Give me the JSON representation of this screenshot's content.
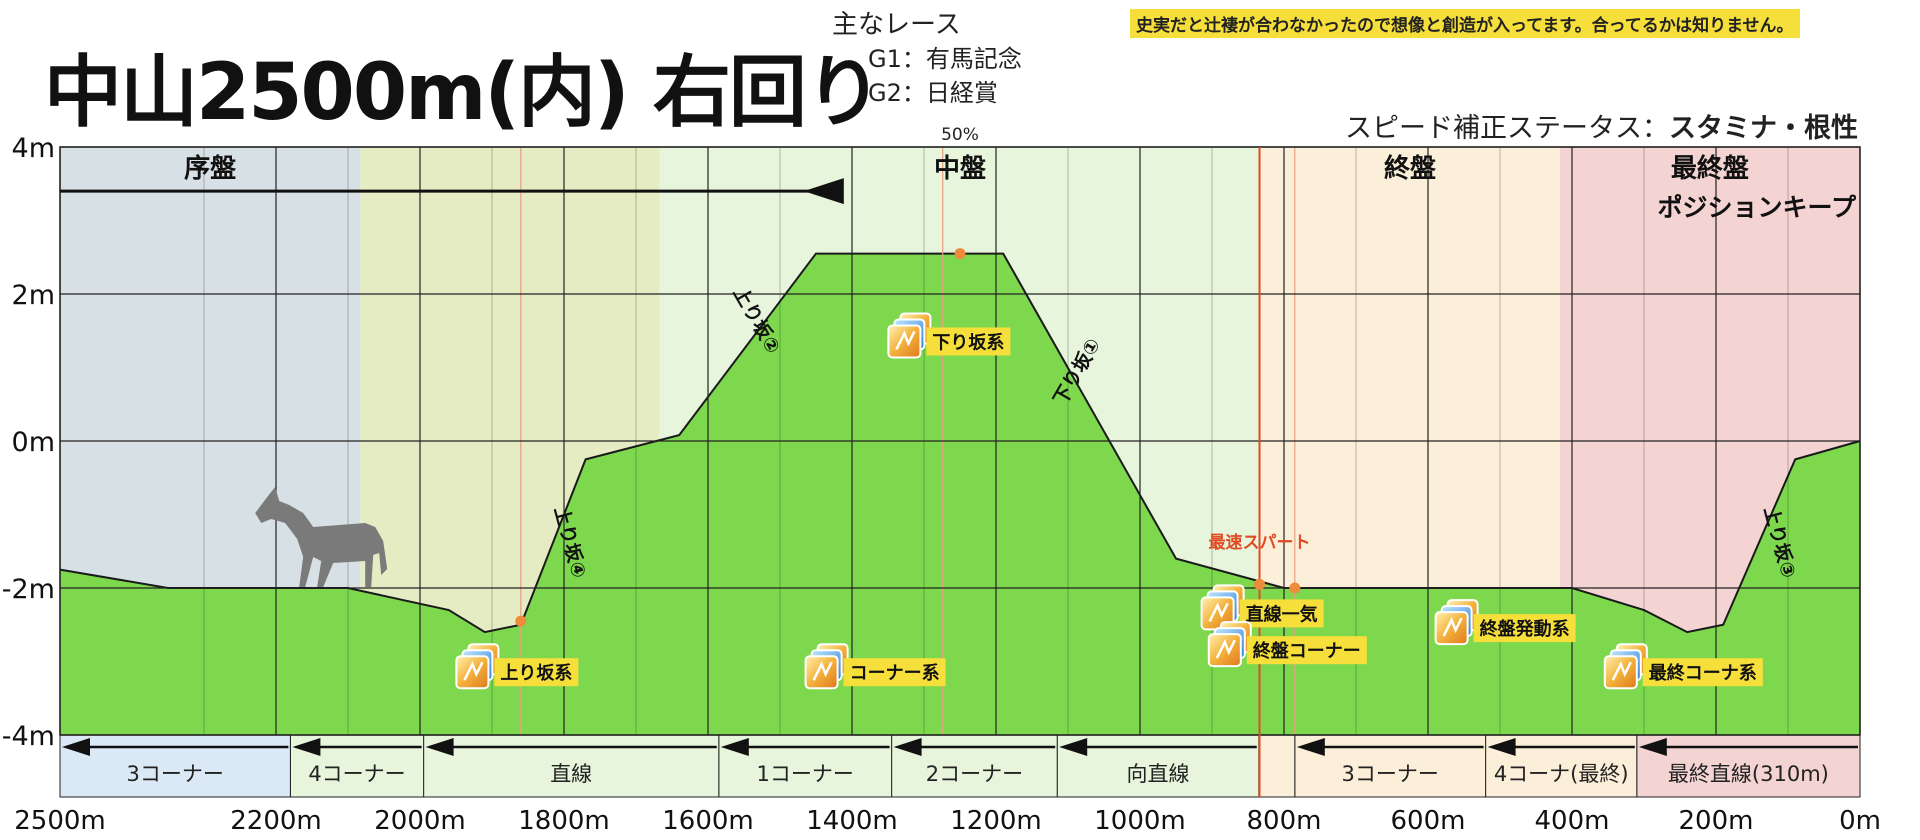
{
  "header": {
    "title": "中山2500m(内) 右回り",
    "main_races_label": "主なレース",
    "races": [
      "G1：有馬記念",
      "G2：日経賞"
    ],
    "note": "史実だと辻褄が合わなかったので想像と創造が入ってます。合ってるかは知りません。",
    "status_label": "スピード補正ステータス：",
    "status_value": "スタミナ・根性"
  },
  "chart_data": {
    "type": "area",
    "title": "中山2500m(内) 右回り",
    "x_unit": "m",
    "y_unit": "m",
    "xlim": [
      0,
      2500
    ],
    "ylim": [
      -4,
      4
    ],
    "x_ticks": [
      "0m",
      "200m",
      "400m",
      "600m",
      "800m",
      "1000m",
      "1200m",
      "1400m",
      "1600m",
      "1800m",
      "2000m",
      "2200m",
      "2500m"
    ],
    "y_ticks": [
      "4m",
      "2m",
      "0m",
      "-2m",
      "-4m"
    ],
    "grid": true,
    "elevation": {
      "x": [
        0,
        90,
        190,
        240,
        300,
        400,
        800,
        950,
        1190,
        1450,
        1640,
        1770,
        1860,
        1910,
        1960,
        2100,
        2350,
        2500
      ],
      "y": [
        0,
        -0.25,
        -2.5,
        -2.6,
        -2.3,
        -2.0,
        -2.0,
        -1.6,
        2.55,
        2.55,
        0.08,
        -0.25,
        -2.5,
        -2.6,
        -2.3,
        -2.0,
        -2.0,
        -1.75
      ]
    },
    "phases": [
      {
        "label": "最終盤",
        "from": 0,
        "to": 417,
        "color": "#f4d4d2"
      },
      {
        "label": "終盤",
        "from": 417,
        "to": 833,
        "color": "#fcefd9"
      },
      {
        "label": "中盤",
        "from": 833,
        "to": 1667,
        "color": "#e6f5dc"
      },
      {
        "label": "",
        "from": 1667,
        "to": 2083,
        "color": "#e5ecc4"
      },
      {
        "label": "序盤",
        "from": 2083,
        "to": 2500,
        "color": "#d7e0e5"
      }
    ],
    "sections": [
      {
        "label": "最終直線(310m)",
        "from": 0,
        "to": 310,
        "color": "#f4d4d2"
      },
      {
        "label": "4コーナ(最終)",
        "from": 310,
        "to": 520,
        "color": "#fcefd9"
      },
      {
        "label": "3コーナー",
        "from": 520,
        "to": 785,
        "color": "#fcefd9"
      },
      {
        "label": "",
        "from": 785,
        "to": 835,
        "color": "#fcefd9"
      },
      {
        "label": "向直線",
        "from": 835,
        "to": 1115,
        "color": "#e6f5dc"
      },
      {
        "label": "2コーナー",
        "from": 1115,
        "to": 1345,
        "color": "#e6f5dc"
      },
      {
        "label": "1コーナー",
        "from": 1345,
        "to": 1585,
        "color": "#e6f5dc"
      },
      {
        "label": "直線",
        "from": 1585,
        "to": 1995,
        "color": "#e6f5dc"
      },
      {
        "label": "4コーナー",
        "from": 1995,
        "to": 2180,
        "color": "#e6f5dc"
      },
      {
        "label": "3コーナー",
        "from": 2180,
        "to": 2500,
        "color": "#dbe9f6"
      }
    ],
    "slope_labels": [
      {
        "label": "上り坂③",
        "x": 120,
        "y": -1.4,
        "rotate": 75
      },
      {
        "label": "下り坂①",
        "x": 1080,
        "y": 0.9,
        "rotate": -60
      },
      {
        "label": "上り坂②",
        "x": 1540,
        "y": 1.6,
        "rotate": 60
      },
      {
        "label": "上り坂④",
        "x": 1800,
        "y": -1.4,
        "rotate": 75
      }
    ],
    "skills": [
      {
        "label": "最終コーナ系",
        "x": 285,
        "y": -3.2
      },
      {
        "label": "終盤発動系",
        "x": 520,
        "y": -2.6
      },
      {
        "label": "直線一気",
        "x": 845,
        "y": -2.4
      },
      {
        "label": "終盤コーナー",
        "x": 835,
        "y": -2.9
      },
      {
        "label": "下り坂系",
        "x": 1280,
        "y": 1.3
      },
      {
        "label": "コーナー系",
        "x": 1395,
        "y": -3.2
      },
      {
        "label": "上り坂系",
        "x": 1880,
        "y": -3.2
      }
    ],
    "markers": {
      "spurt_label": "最速スパート",
      "spurt_x": 834,
      "midpoint_label": "50%",
      "midpoint_x": 1250,
      "points": [
        {
          "x": 785,
          "y": -2.0
        },
        {
          "x": 834,
          "y": -1.95
        },
        {
          "x": 1250,
          "y": 2.55
        },
        {
          "x": 1860,
          "y": -2.45
        }
      ],
      "position_keep_label": "ポジションキープ",
      "position_keep_from": 2500,
      "position_keep_to": 1460,
      "position_keep_y": 3.4,
      "finish_arrow": {
        "from": 520,
        "to": 417,
        "y": -2.55
      }
    },
    "fine_grid_x": [
      100,
      300,
      500,
      700,
      900,
      1100,
      1300,
      1500,
      1700,
      1900,
      2100,
      2300
    ],
    "accent_lines_x": [
      785,
      1274,
      1860
    ],
    "colors": {
      "ground": "#7ed84e",
      "grid": "#222222",
      "spurt": "#e04a24",
      "marker": "#ef8b3c",
      "skill_label_bg": "#f6df3b",
      "arrow": "#111111",
      "finish_arrow": "#b3301c",
      "horse": "#7a7a7a"
    },
    "icons": [
      "skill-hint-icon",
      "horse-silhouette-icon"
    ]
  }
}
